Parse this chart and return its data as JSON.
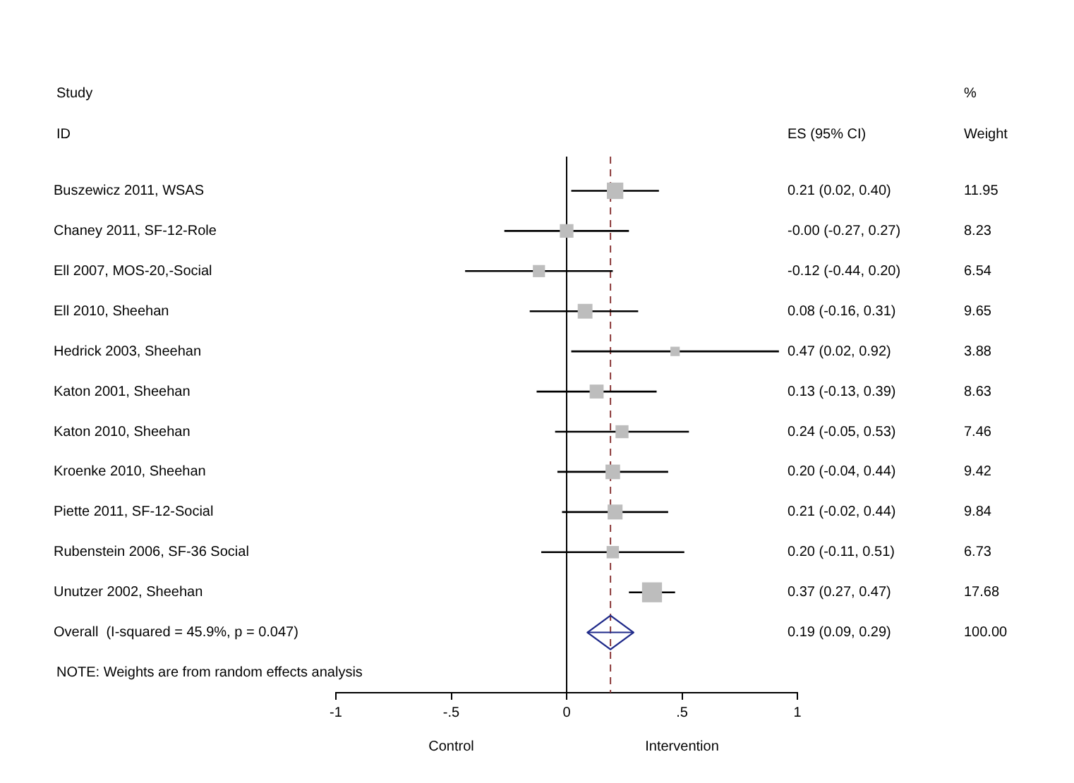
{
  "chart_data": {
    "type": "scatter",
    "orientation": "horizontal",
    "categories": [
      "Buszewicz 2011, WSAS",
      "Chaney 2011, SF-12-Role",
      "Ell 2007, MOS-20,-Social",
      "Ell 2010, Sheehan",
      "Hedrick 2003, Sheehan",
      "Katon 2001, Sheehan",
      "Katon 2010, Sheehan",
      "Kroenke 2010, Sheehan",
      "Piette 2011, SF-12-Social",
      "Rubenstein 2006, SF-36 Social",
      "Unutzer 2002, Sheehan",
      "Overall  (I-squared = 45.9%, p = 0.047)",
      null
    ],
    "series": [
      {
        "color": "#bdbdbd",
        "marker": "square",
        "values": [
          0.21,
          -0.0,
          -0.12,
          0.08,
          0.47,
          0.13,
          0.24,
          0.2,
          0.21,
          0.2,
          0.37,
          null,
          null
        ],
        "errors": [
          [
            0.02,
            0.4
          ],
          [
            -0.27,
            0.27
          ],
          [
            -0.44,
            0.2
          ],
          [
            -0.16,
            0.31
          ],
          [
            0.02,
            0.92
          ],
          [
            -0.13,
            0.39
          ],
          [
            -0.05,
            0.53
          ],
          [
            -0.04,
            0.44
          ],
          [
            -0.02,
            0.44
          ],
          [
            -0.11,
            0.51
          ],
          [
            0.27,
            0.47
          ],
          null,
          null
        ],
        "sizes": [
          0.676,
          0.466,
          0.37,
          0.546,
          0.219,
          0.488,
          0.422,
          0.533,
          0.557,
          0.381,
          1,
          null,
          null
        ],
        "value_labels": [
          "0.21 (0.02, 0.40)",
          "-0.00 (-0.27, 0.27)",
          "-0.12 (-0.44, 0.20)",
          "0.08 (-0.16, 0.31)",
          "0.47 (0.02, 0.92)",
          "0.13 (-0.13, 0.39)",
          "0.24 (-0.05, 0.53)",
          "0.20 (-0.04, 0.44)",
          "0.21 (-0.02, 0.44)",
          "0.20 (-0.11, 0.51)",
          "0.37 (0.27, 0.47)",
          null,
          null
        ]
      },
      {
        "color": "#1f2a8a",
        "marker": "diamond",
        "values": [
          null,
          null,
          null,
          null,
          null,
          null,
          null,
          null,
          null,
          null,
          null,
          0.19,
          null
        ],
        "errors": [
          null,
          null,
          null,
          null,
          null,
          null,
          null,
          null,
          null,
          null,
          null,
          [
            0.09,
            0.29
          ],
          null
        ]
      }
    ],
    "xlim": [
      -1,
      1
    ],
    "xticks": [
      -1,
      {
        "value": -0.5,
        "label": "-.5"
      },
      0,
      {
        "value": 0.5,
        "label": ".5"
      },
      1
    ],
    "ref_lines": [
      {
        "axis": "x",
        "value": 0,
        "color": "#000000",
        "line_style": "solid"
      },
      {
        "axis": "x",
        "value": 0.19,
        "color": "#8b3a3a",
        "line_style": "dashed"
      }
    ],
    "annotations": [
      "Study",
      "ID",
      "ES (95% CI)",
      "%",
      "Weight",
      "11.95",
      "8.23",
      "6.54",
      "9.65",
      "3.88",
      "8.63",
      "7.46",
      "9.42",
      "9.84",
      "6.73",
      "17.68",
      "100.00",
      "0.19 (0.09, 0.29)",
      "NOTE: Weights are from random effects analysis",
      "Control",
      "Intervention"
    ]
  }
}
